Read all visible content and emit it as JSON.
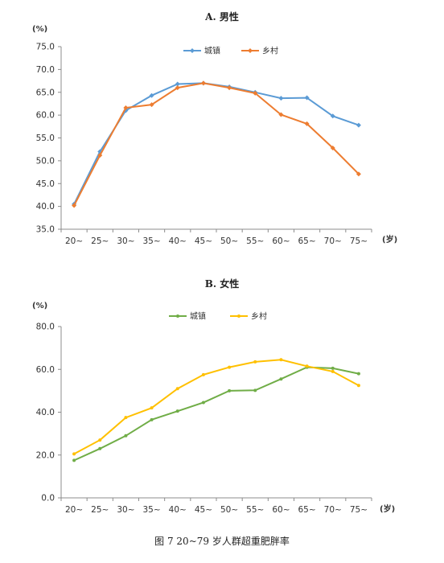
{
  "caption": "图 7   20~79 岁人群超重肥胖率",
  "chart_data": [
    {
      "type": "line",
      "title": "A. 男性",
      "ylabel": "(%)",
      "xlabel": "(岁)",
      "categories": [
        "20~",
        "25~",
        "30~",
        "35~",
        "40~",
        "45~",
        "50~",
        "55~",
        "60~",
        "65~",
        "70~",
        "75~"
      ],
      "ylim": [
        35.0,
        75.0
      ],
      "yticks": [
        "35.0",
        "40.0",
        "45.0",
        "50.0",
        "55.0",
        "60.0",
        "65.0",
        "70.0",
        "75.0"
      ],
      "legend_position": "top-center",
      "series": [
        {
          "name": "城镇",
          "color": "#5B9BD5",
          "values": [
            40.5,
            52.0,
            61.0,
            64.3,
            66.8,
            67.0,
            66.2,
            65.0,
            63.7,
            63.8,
            59.8,
            57.8
          ]
        },
        {
          "name": "乡村",
          "color": "#ED7D31",
          "values": [
            40.2,
            51.2,
            61.6,
            62.3,
            66.0,
            67.0,
            66.0,
            64.8,
            60.1,
            58.1,
            52.8,
            47.1
          ]
        }
      ]
    },
    {
      "type": "line",
      "title": "B. 女性",
      "ylabel": "(%)",
      "xlabel": "(岁)",
      "categories": [
        "20~",
        "25~",
        "30~",
        "35~",
        "40~",
        "45~",
        "50~",
        "55~",
        "60~",
        "65~",
        "70~",
        "75~"
      ],
      "ylim": [
        0.0,
        80.0
      ],
      "yticks": [
        "0.0",
        "20.0",
        "40.0",
        "60.0",
        "80.0"
      ],
      "legend_position": "top-center",
      "series": [
        {
          "name": "城镇",
          "color": "#70AD47",
          "values": [
            17.5,
            23.0,
            29.0,
            36.5,
            40.5,
            44.5,
            50.0,
            50.2,
            55.5,
            61.0,
            60.5,
            58.0
          ]
        },
        {
          "name": "乡村",
          "color": "#FFC000",
          "values": [
            20.5,
            27.0,
            37.5,
            42.0,
            51.0,
            57.5,
            61.0,
            63.5,
            64.5,
            61.5,
            59.0,
            52.5
          ]
        }
      ]
    }
  ]
}
